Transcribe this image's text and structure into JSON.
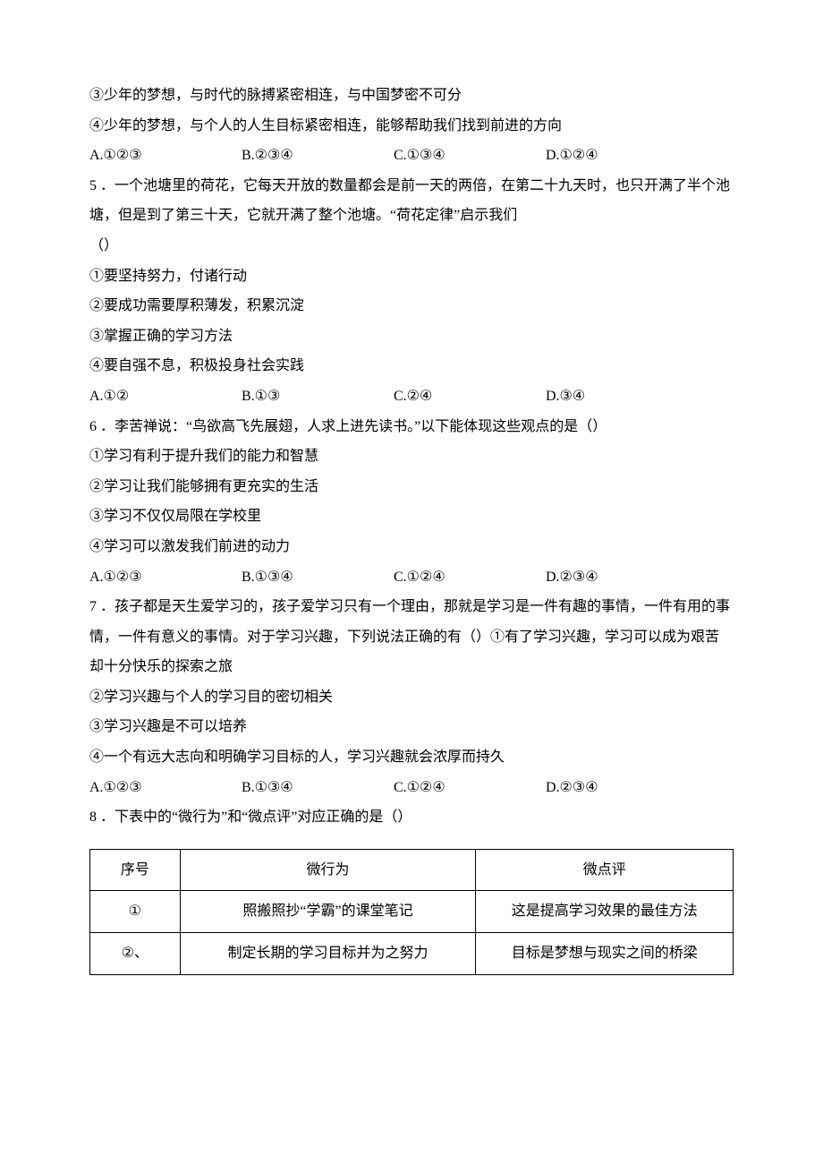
{
  "lines": {
    "l1": "③少年的梦想，与时代的脉搏紧密相连，与中国梦密不可分",
    "l2": "④少年的梦想，与个人的人生目标紧密相连，能够帮助我们找到前进的方向"
  },
  "q4_options": {
    "a": "A.①②③",
    "b": "B.②③④",
    "c": "C.①③④",
    "d": "D.①②④"
  },
  "q5": {
    "stem1": "5 ．一个池塘里的荷花，它每天开放的数量都会是前一天的两倍，在第二十九天时，也只开满了半个池",
    "stem2": "塘，但是到了第三十天，它就开满了整个池塘。“荷花定律”启示我们",
    "stem3": "（）",
    "i1": "①要坚持努力，付诸行动",
    "i2": "②要成功需要厚积薄发，积累沉淀",
    "i3": "③掌握正确的学习方法",
    "i4": "④要自强不息，积极投身社会实践",
    "options": {
      "a": "A.①②",
      "b": "B.①③",
      "c": "C.②④",
      "d": "D.③④"
    }
  },
  "q6": {
    "stem": "6 ．李苦禅说：“鸟欲高飞先展翅，人求上进先读书。”以下能体现这些观点的是（）",
    "i1": "①学习有利于提升我们的能力和智慧",
    "i2": "②学习让我们能够拥有更充实的生活",
    "i3": "③学习不仅仅局限在学校里",
    "i4": "④学习可以激发我们前进的动力",
    "options": {
      "a": "A.①②③",
      "b": "B.①③④",
      "c": "C.①②④",
      "d": "D.②③④"
    }
  },
  "q7": {
    "stem1": "7 ．孩子都是天生爱学习的，孩子爱学习只有一个理由，那就是学习是一件有趣的事情，一件有用的事",
    "stem2": "情，一件有意义的事情。对于学习兴趣，下列说法正确的有（）①有了学习兴趣，学习可以成为艰苦",
    "stem3": "却十分快乐的探索之旅",
    "i2": "②学习兴趣与个人的学习目的密切相关",
    "i3": "③学习兴趣是不可以培养",
    "i4": "④一个有远大志向和明确学习目标的人，学习兴趣就会浓厚而持久",
    "options": {
      "a": "A.①②③",
      "b": "B.①③④",
      "c": "C.①②④",
      "d": "D.②③④"
    }
  },
  "q8": {
    "stem": "8 ．下表中的“微行为”和“微点评”对应正确的是（）"
  },
  "table": {
    "headers": {
      "h1": "序号",
      "h2": "微行为",
      "h3": "微点评"
    },
    "rows": [
      {
        "c1": "①",
        "c2": "照搬照抄“学霸”的课堂笔记",
        "c3": "这是提高学习效果的最佳方法"
      },
      {
        "c1": "②、",
        "c2": "制定长期的学习目标并为之努力",
        "c3": "目标是梦想与现实之间的桥梁"
      }
    ]
  }
}
